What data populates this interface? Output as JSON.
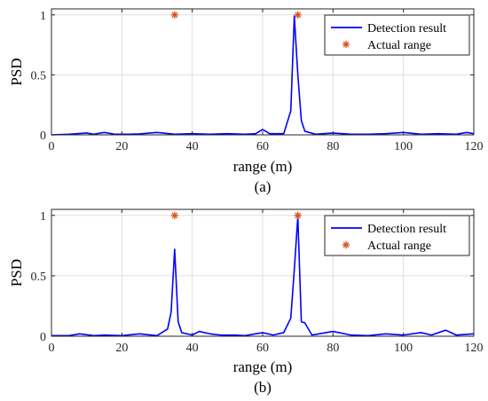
{
  "chart_data": [
    {
      "type": "line",
      "caption": "(a)",
      "xlabel": "range (m)",
      "ylabel": "PSD",
      "xlim": [
        0,
        120
      ],
      "ylim": [
        0,
        1.05
      ],
      "xticks": [
        0,
        20,
        40,
        60,
        80,
        100,
        120
      ],
      "yticks": [
        0,
        0.5,
        1
      ],
      "ytick_labels": [
        "0",
        "0.5",
        "1"
      ],
      "grid": true,
      "legend_position": "top-right",
      "legend": [
        "Detection result",
        "Actual range"
      ],
      "series": [
        {
          "name": "Detection result",
          "style": "line",
          "color": "#0000ff",
          "x": [
            0,
            5,
            10,
            12,
            15,
            18,
            22,
            25,
            30,
            35,
            40,
            45,
            50,
            55,
            58,
            60,
            62,
            66,
            68,
            69,
            70,
            71,
            72,
            75,
            80,
            85,
            90,
            95,
            100,
            105,
            110,
            115,
            118,
            120
          ],
          "y": [
            0,
            0.005,
            0.015,
            0.005,
            0.02,
            0.005,
            0.005,
            0.008,
            0.02,
            0.005,
            0.01,
            0.005,
            0.01,
            0.005,
            0.01,
            0.045,
            0.01,
            0.01,
            0.2,
            0.99,
            0.5,
            0.12,
            0.03,
            0.005,
            0.015,
            0.005,
            0.005,
            0.01,
            0.02,
            0.005,
            0.01,
            0.005,
            0.02,
            0.01
          ]
        },
        {
          "name": "Actual range",
          "style": "marker",
          "marker": "asterisk",
          "color": "#d95319",
          "x": [
            35,
            70
          ],
          "y": [
            1,
            1
          ]
        }
      ]
    },
    {
      "type": "line",
      "caption": "(b)",
      "xlabel": "range (m)",
      "ylabel": "PSD",
      "xlim": [
        0,
        120
      ],
      "ylim": [
        0,
        1.05
      ],
      "xticks": [
        0,
        20,
        40,
        60,
        80,
        100,
        120
      ],
      "yticks": [
        0,
        0.5,
        1
      ],
      "ytick_labels": [
        "0",
        "0.5",
        "1"
      ],
      "grid": true,
      "legend_position": "top-right",
      "legend": [
        "Detection result",
        "Actual range"
      ],
      "series": [
        {
          "name": "Detection result",
          "style": "line",
          "color": "#0000ff",
          "x": [
            0,
            5,
            8,
            12,
            15,
            20,
            25,
            30,
            33,
            34,
            35,
            36,
            37,
            40,
            42,
            45,
            48,
            52,
            55,
            60,
            63,
            66,
            68,
            69,
            70,
            71,
            72,
            74,
            76,
            80,
            85,
            90,
            95,
            100,
            105,
            108,
            112,
            115,
            120
          ],
          "y": [
            0.005,
            0.005,
            0.02,
            0.005,
            0.01,
            0.005,
            0.02,
            0.005,
            0.06,
            0.2,
            0.72,
            0.12,
            0.03,
            0.01,
            0.04,
            0.02,
            0.01,
            0.01,
            0.005,
            0.03,
            0.01,
            0.03,
            0.15,
            0.55,
            0.99,
            0.12,
            0.11,
            0.01,
            0.02,
            0.04,
            0.01,
            0.005,
            0.02,
            0.01,
            0.03,
            0.01,
            0.05,
            0.01,
            0.02
          ]
        },
        {
          "name": "Actual range",
          "style": "marker",
          "marker": "asterisk",
          "color": "#d95319",
          "x": [
            35,
            70
          ],
          "y": [
            1,
            1
          ]
        }
      ]
    }
  ]
}
